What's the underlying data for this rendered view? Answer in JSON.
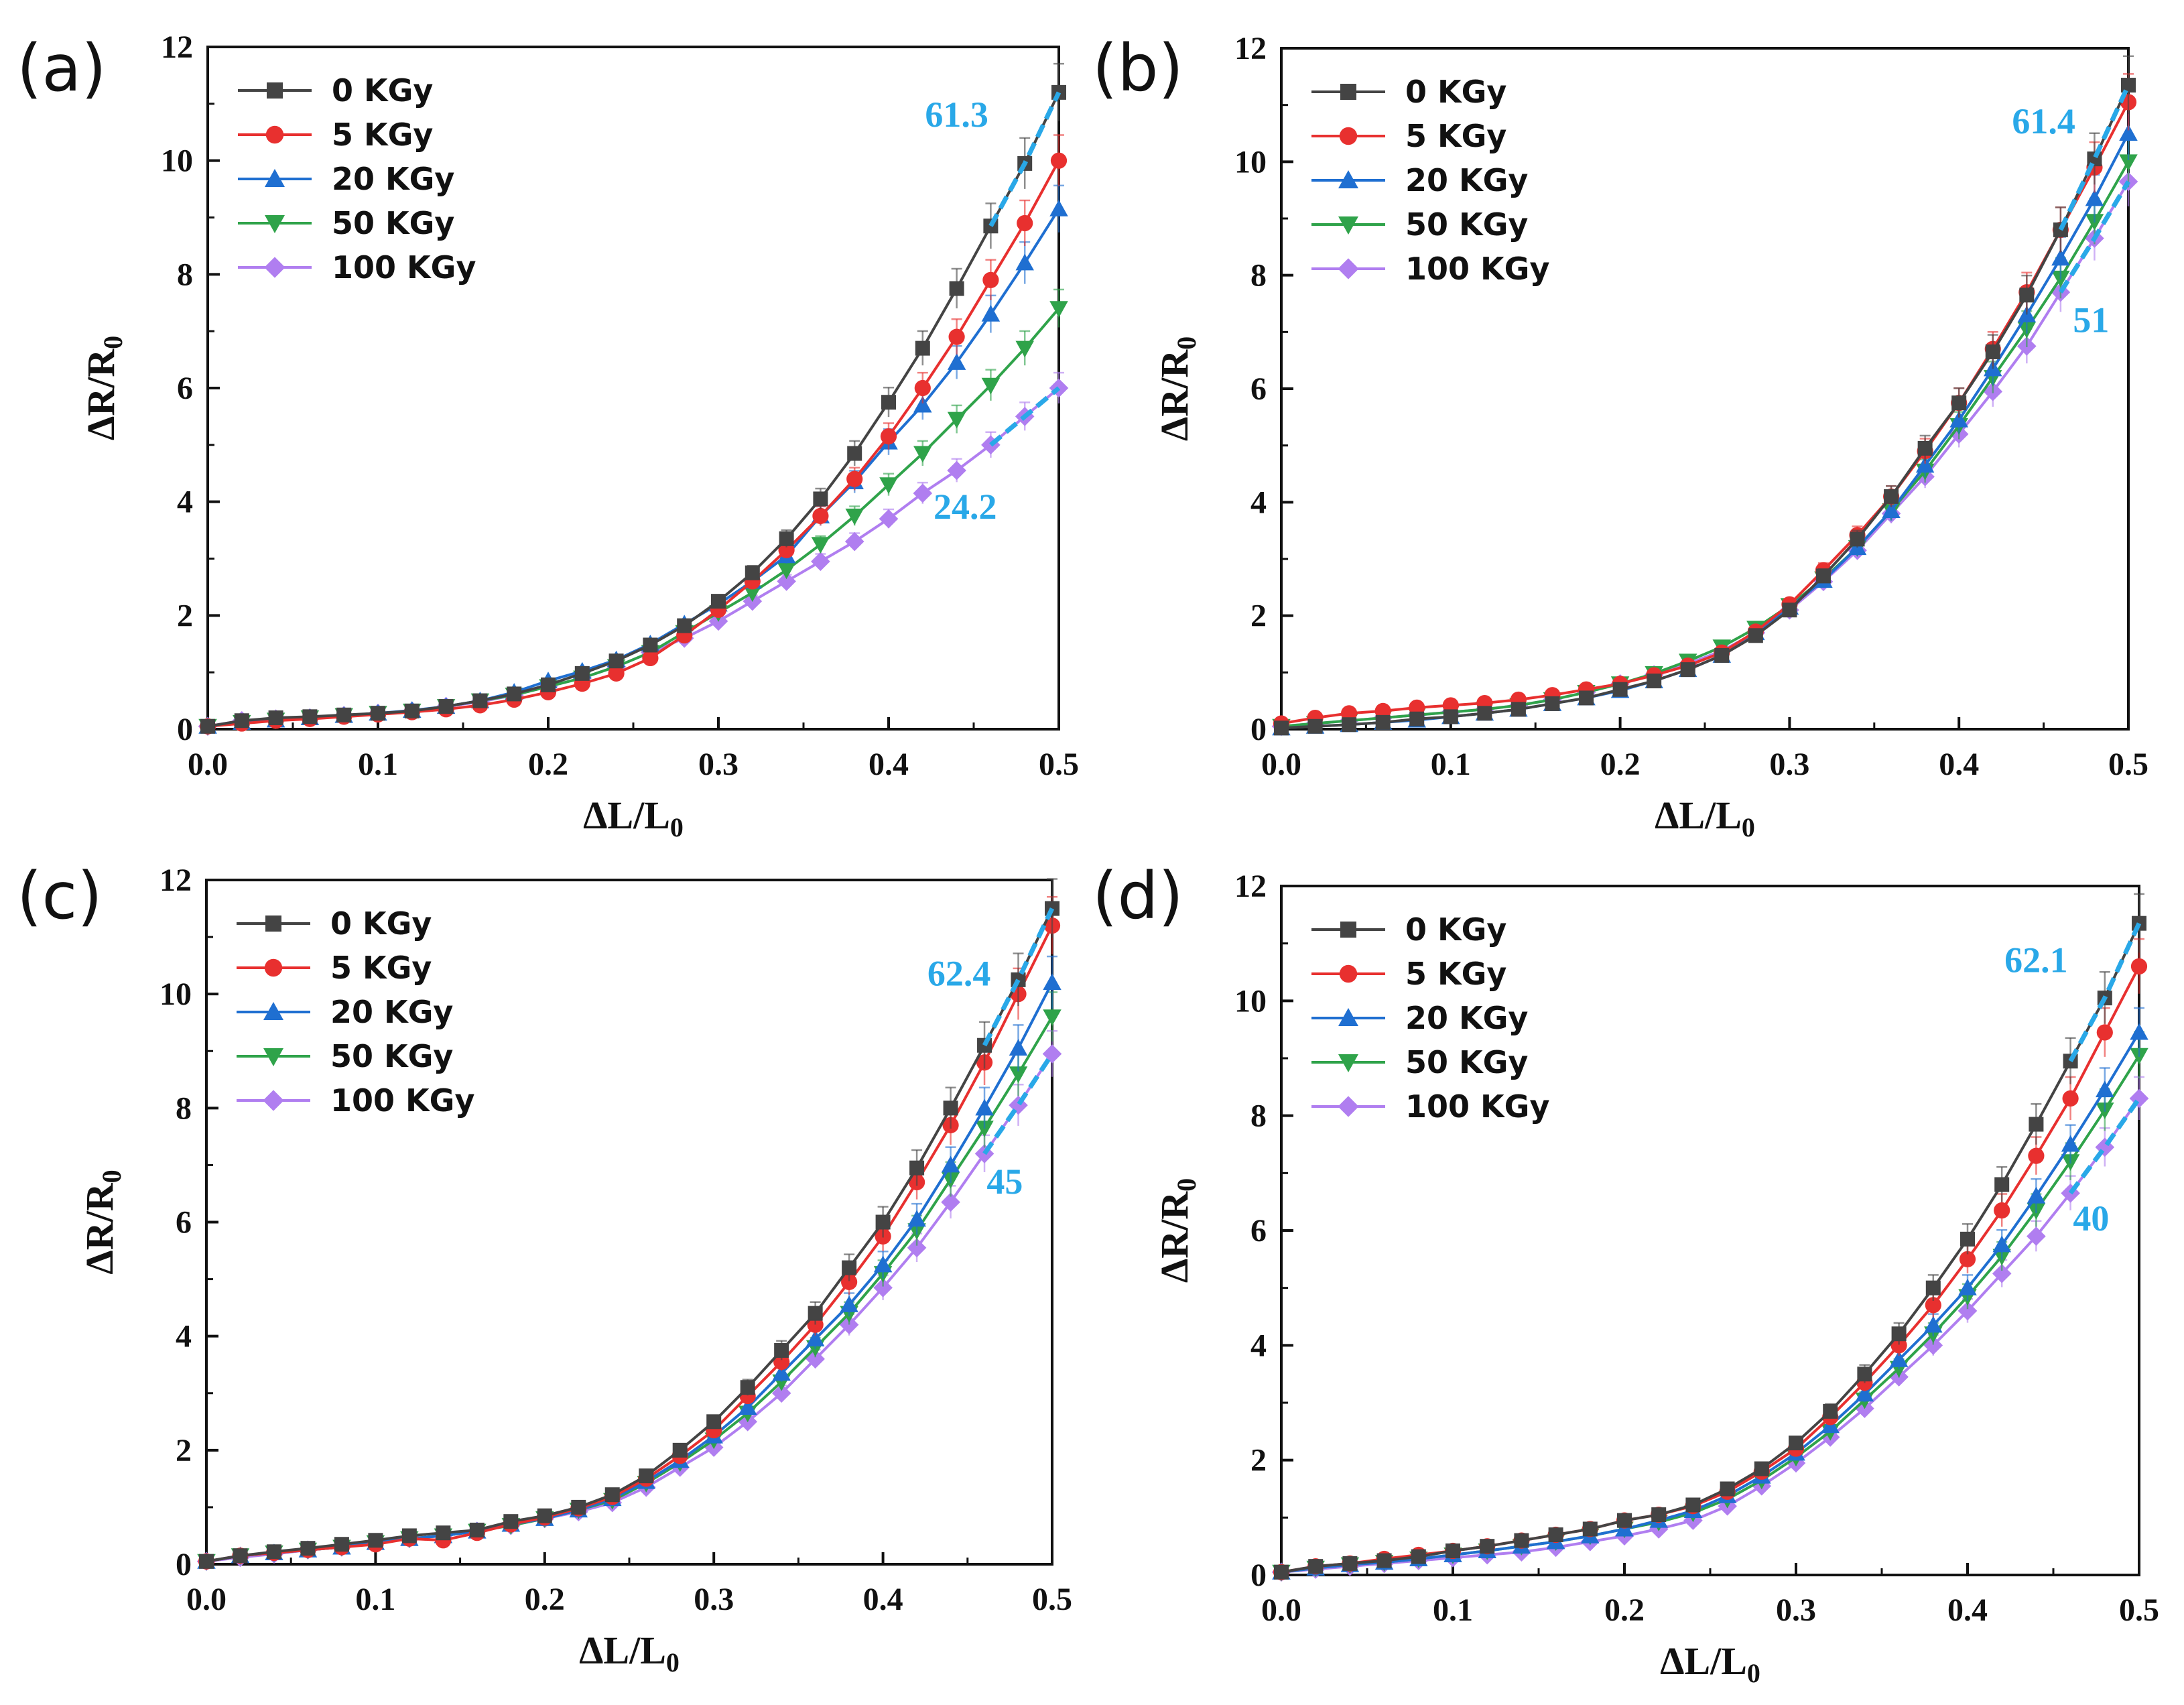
{
  "figure": {
    "x_axis_title_main": "ΔL/L",
    "x_axis_title_sub": "0",
    "y_axis_title_main": "ΔR/R",
    "y_axis_title_sub": "0"
  },
  "colors": {
    "0 KGy": "#444444",
    "5 KGy": "#e8302f",
    "20 KGy": "#1f6fd1",
    "50 KGy": "#2fa34a",
    "100 KGy": "#b07ef0",
    "annotation": "#29a8e8"
  },
  "markers": {
    "0 KGy": "square",
    "5 KGy": "circle",
    "20 KGy": "triangle-up",
    "50 KGy": "triangle-down",
    "100 KGy": "diamond"
  },
  "chart_data": [
    {
      "type": "line",
      "panel": "(a)",
      "xlim": [
        0,
        0.5
      ],
      "ylim": [
        0,
        12
      ],
      "xticks": [
        "0.0",
        "0.1",
        "0.2",
        "0.3",
        "0.4",
        "0.5"
      ],
      "yticks": [
        "0",
        "2",
        "4",
        "6",
        "8",
        "10",
        "12"
      ],
      "grid": false,
      "legend_position": "top-left",
      "annotations": [
        {
          "text": "61.3",
          "x": 0.44,
          "y": 10.6
        },
        {
          "text": "24.2",
          "x": 0.445,
          "y": 3.7
        }
      ],
      "x": [
        0,
        0.02,
        0.04,
        0.06,
        0.08,
        0.1,
        0.12,
        0.14,
        0.16,
        0.18,
        0.2,
        0.22,
        0.24,
        0.26,
        0.28,
        0.3,
        0.32,
        0.34,
        0.36,
        0.38,
        0.4,
        0.42,
        0.44,
        0.46,
        0.48,
        0.5
      ],
      "series": [
        {
          "name": "0 KGy",
          "values": [
            0.05,
            0.15,
            0.2,
            0.22,
            0.25,
            0.28,
            0.32,
            0.4,
            0.5,
            0.62,
            0.78,
            0.98,
            1.2,
            1.48,
            1.82,
            2.25,
            2.75,
            3.35,
            4.05,
            4.85,
            5.75,
            6.7,
            7.75,
            8.85,
            9.95,
            11.2
          ]
        },
        {
          "name": "5 KGy",
          "values": [
            0.05,
            0.1,
            0.15,
            0.18,
            0.22,
            0.26,
            0.3,
            0.35,
            0.42,
            0.52,
            0.65,
            0.8,
            0.98,
            1.25,
            1.65,
            2.1,
            2.6,
            3.15,
            3.75,
            4.4,
            5.15,
            6.0,
            6.9,
            7.9,
            8.9,
            10.0
          ]
        },
        {
          "name": "20 KGy",
          "values": [
            0.05,
            0.12,
            0.16,
            0.2,
            0.24,
            0.28,
            0.33,
            0.4,
            0.5,
            0.65,
            0.85,
            1.02,
            1.22,
            1.5,
            1.85,
            2.2,
            2.6,
            3.05,
            3.75,
            4.35,
            5.05,
            5.7,
            6.45,
            7.3,
            8.2,
            9.15
          ]
        },
        {
          "name": "50 KGy",
          "values": [
            0.05,
            0.12,
            0.16,
            0.2,
            0.24,
            0.28,
            0.32,
            0.4,
            0.5,
            0.6,
            0.75,
            0.9,
            1.1,
            1.35,
            1.7,
            2.05,
            2.4,
            2.8,
            3.25,
            3.75,
            4.3,
            4.85,
            5.45,
            6.05,
            6.7,
            7.4
          ]
        },
        {
          "name": "100 KGy",
          "values": [
            0.05,
            0.15,
            0.18,
            0.2,
            0.24,
            0.28,
            0.32,
            0.4,
            0.48,
            0.6,
            0.75,
            0.9,
            1.1,
            1.35,
            1.6,
            1.9,
            2.25,
            2.6,
            2.95,
            3.3,
            3.7,
            4.15,
            4.55,
            5.0,
            5.5,
            6.0
          ]
        }
      ]
    },
    {
      "type": "line",
      "panel": "(b)",
      "xlim": [
        0,
        0.5
      ],
      "ylim": [
        0,
        12
      ],
      "xticks": [
        "0.0",
        "0.1",
        "0.2",
        "0.3",
        "0.4",
        "0.5"
      ],
      "yticks": [
        "0",
        "2",
        "4",
        "6",
        "8",
        "10",
        "12"
      ],
      "grid": false,
      "legend_position": "top-left",
      "annotations": [
        {
          "text": "61.4",
          "x": 0.45,
          "y": 10.5
        },
        {
          "text": "51",
          "x": 0.478,
          "y": 7.0
        }
      ],
      "x": [
        0,
        0.02,
        0.04,
        0.06,
        0.08,
        0.1,
        0.12,
        0.14,
        0.16,
        0.18,
        0.2,
        0.22,
        0.24,
        0.26,
        0.28,
        0.3,
        0.32,
        0.34,
        0.36,
        0.38,
        0.4,
        0.42,
        0.44,
        0.46,
        0.48,
        0.5
      ],
      "series": [
        {
          "name": "0 KGy",
          "values": [
            0.02,
            0.05,
            0.08,
            0.12,
            0.18,
            0.22,
            0.28,
            0.35,
            0.45,
            0.55,
            0.7,
            0.85,
            1.05,
            1.3,
            1.65,
            2.1,
            2.7,
            3.35,
            4.1,
            4.95,
            5.75,
            6.65,
            7.65,
            8.8,
            10.05,
            11.35
          ]
        },
        {
          "name": "5 KGy",
          "values": [
            0.1,
            0.2,
            0.28,
            0.32,
            0.38,
            0.42,
            0.46,
            0.52,
            0.6,
            0.7,
            0.8,
            0.95,
            1.12,
            1.35,
            1.72,
            2.2,
            2.8,
            3.42,
            4.1,
            4.9,
            5.75,
            6.7,
            7.7,
            8.8,
            9.9,
            11.05
          ]
        },
        {
          "name": "20 KGy",
          "values": [
            0.02,
            0.05,
            0.08,
            0.12,
            0.16,
            0.22,
            0.28,
            0.35,
            0.45,
            0.55,
            0.68,
            0.85,
            1.05,
            1.3,
            1.7,
            2.15,
            2.62,
            3.2,
            3.85,
            4.65,
            5.45,
            6.35,
            7.3,
            8.3,
            9.35,
            10.5
          ]
        },
        {
          "name": "50 KGy",
          "values": [
            0.05,
            0.1,
            0.15,
            0.2,
            0.25,
            0.3,
            0.35,
            0.42,
            0.52,
            0.65,
            0.8,
            0.98,
            1.2,
            1.45,
            1.78,
            2.18,
            2.65,
            3.2,
            3.85,
            4.55,
            5.35,
            6.2,
            7.05,
            7.95,
            8.95,
            10.0
          ]
        },
        {
          "name": "100 KGy",
          "values": [
            0.05,
            0.1,
            0.15,
            0.2,
            0.25,
            0.3,
            0.35,
            0.42,
            0.52,
            0.65,
            0.8,
            0.96,
            1.15,
            1.38,
            1.7,
            2.1,
            2.6,
            3.15,
            3.8,
            4.45,
            5.2,
            5.95,
            6.75,
            7.7,
            8.65,
            9.65
          ]
        }
      ]
    },
    {
      "type": "line",
      "panel": "(c)",
      "xlim": [
        0,
        0.5
      ],
      "ylim": [
        0,
        12
      ],
      "xticks": [
        "0.0",
        "0.1",
        "0.2",
        "0.3",
        "0.4",
        "0.5"
      ],
      "yticks": [
        "0",
        "2",
        "4",
        "6",
        "8",
        "10",
        "12"
      ],
      "grid": false,
      "legend_position": "top-left",
      "annotations": [
        {
          "text": "62.4",
          "x": 0.445,
          "y": 10.15
        },
        {
          "text": "45",
          "x": 0.472,
          "y": 6.5
        }
      ],
      "x": [
        0,
        0.02,
        0.04,
        0.06,
        0.08,
        0.1,
        0.12,
        0.14,
        0.16,
        0.18,
        0.2,
        0.22,
        0.24,
        0.26,
        0.28,
        0.3,
        0.32,
        0.34,
        0.36,
        0.38,
        0.4,
        0.42,
        0.44,
        0.46,
        0.48,
        0.5
      ],
      "series": [
        {
          "name": "0 KGy",
          "values": [
            0.05,
            0.15,
            0.22,
            0.28,
            0.35,
            0.42,
            0.5,
            0.55,
            0.6,
            0.75,
            0.85,
            1.0,
            1.22,
            1.55,
            2.0,
            2.5,
            3.1,
            3.75,
            4.4,
            5.2,
            6.0,
            6.95,
            8.0,
            9.1,
            10.25,
            11.5
          ]
        },
        {
          "name": "5 KGy",
          "values": [
            0.05,
            0.15,
            0.2,
            0.25,
            0.3,
            0.35,
            0.45,
            0.42,
            0.55,
            0.7,
            0.82,
            0.98,
            1.18,
            1.5,
            1.9,
            2.35,
            2.95,
            3.55,
            4.2,
            4.95,
            5.75,
            6.7,
            7.7,
            8.8,
            10.0,
            11.2
          ]
        },
        {
          "name": "20 KGy",
          "values": [
            0.05,
            0.15,
            0.2,
            0.25,
            0.3,
            0.38,
            0.45,
            0.5,
            0.58,
            0.7,
            0.8,
            0.95,
            1.15,
            1.45,
            1.82,
            2.25,
            2.75,
            3.35,
            3.95,
            4.55,
            5.25,
            6.05,
            7.0,
            8.0,
            9.05,
            10.2
          ]
        },
        {
          "name": "50 KGy",
          "values": [
            0.05,
            0.15,
            0.2,
            0.25,
            0.3,
            0.38,
            0.45,
            0.5,
            0.58,
            0.68,
            0.8,
            0.95,
            1.12,
            1.42,
            1.78,
            2.18,
            2.65,
            3.2,
            3.8,
            4.4,
            5.1,
            5.85,
            6.75,
            7.65,
            8.6,
            9.6
          ]
        },
        {
          "name": "100 KGy",
          "values": [
            0.05,
            0.12,
            0.18,
            0.25,
            0.3,
            0.38,
            0.45,
            0.5,
            0.58,
            0.68,
            0.8,
            0.92,
            1.08,
            1.35,
            1.7,
            2.05,
            2.5,
            3.0,
            3.6,
            4.2,
            4.85,
            5.55,
            6.35,
            7.2,
            8.05,
            8.95
          ]
        }
      ]
    },
    {
      "type": "line",
      "panel": "(d)",
      "xlim": [
        0,
        0.5
      ],
      "ylim": [
        0,
        12
      ],
      "xticks": [
        "0.0",
        "0.1",
        "0.2",
        "0.3",
        "0.4",
        "0.5"
      ],
      "yticks": [
        "0",
        "2",
        "4",
        "6",
        "8",
        "10",
        "12"
      ],
      "grid": false,
      "legend_position": "top-left",
      "annotations": [
        {
          "text": "62.1",
          "x": 0.44,
          "y": 10.5
        },
        {
          "text": "40",
          "x": 0.472,
          "y": 6.0
        }
      ],
      "x": [
        0,
        0.02,
        0.04,
        0.06,
        0.08,
        0.1,
        0.12,
        0.14,
        0.16,
        0.18,
        0.2,
        0.22,
        0.24,
        0.26,
        0.28,
        0.3,
        0.32,
        0.34,
        0.36,
        0.38,
        0.4,
        0.42,
        0.44,
        0.46,
        0.48,
        0.5
      ],
      "series": [
        {
          "name": "0 KGy",
          "values": [
            0.05,
            0.15,
            0.2,
            0.25,
            0.32,
            0.42,
            0.5,
            0.6,
            0.7,
            0.8,
            0.95,
            1.05,
            1.22,
            1.5,
            1.85,
            2.3,
            2.85,
            3.5,
            4.2,
            5.0,
            5.85,
            6.8,
            7.85,
            8.95,
            10.05,
            11.35
          ]
        },
        {
          "name": "5 KGy",
          "values": [
            0.05,
            0.15,
            0.2,
            0.28,
            0.35,
            0.42,
            0.5,
            0.6,
            0.7,
            0.8,
            0.95,
            1.05,
            1.2,
            1.45,
            1.8,
            2.2,
            2.75,
            3.35,
            4.0,
            4.7,
            5.5,
            6.35,
            7.3,
            8.3,
            9.45,
            10.6
          ]
        },
        {
          "name": "20 KGy",
          "values": [
            0.05,
            0.12,
            0.18,
            0.22,
            0.28,
            0.35,
            0.42,
            0.5,
            0.58,
            0.68,
            0.8,
            0.95,
            1.12,
            1.38,
            1.72,
            2.12,
            2.6,
            3.15,
            3.75,
            4.35,
            5.0,
            5.75,
            6.6,
            7.5,
            8.45,
            9.45
          ]
        },
        {
          "name": "50 KGy",
          "values": [
            0.05,
            0.12,
            0.18,
            0.22,
            0.28,
            0.35,
            0.42,
            0.5,
            0.58,
            0.68,
            0.8,
            0.92,
            1.08,
            1.32,
            1.65,
            2.05,
            2.5,
            3.05,
            3.6,
            4.2,
            4.85,
            5.55,
            6.35,
            7.2,
            8.1,
            9.05
          ]
        },
        {
          "name": "100 KGy",
          "values": [
            0.05,
            0.1,
            0.15,
            0.2,
            0.25,
            0.3,
            0.35,
            0.4,
            0.48,
            0.58,
            0.68,
            0.8,
            0.95,
            1.2,
            1.55,
            1.95,
            2.4,
            2.9,
            3.45,
            4.0,
            4.6,
            5.25,
            5.9,
            6.65,
            7.45,
            8.3
          ]
        }
      ]
    }
  ]
}
